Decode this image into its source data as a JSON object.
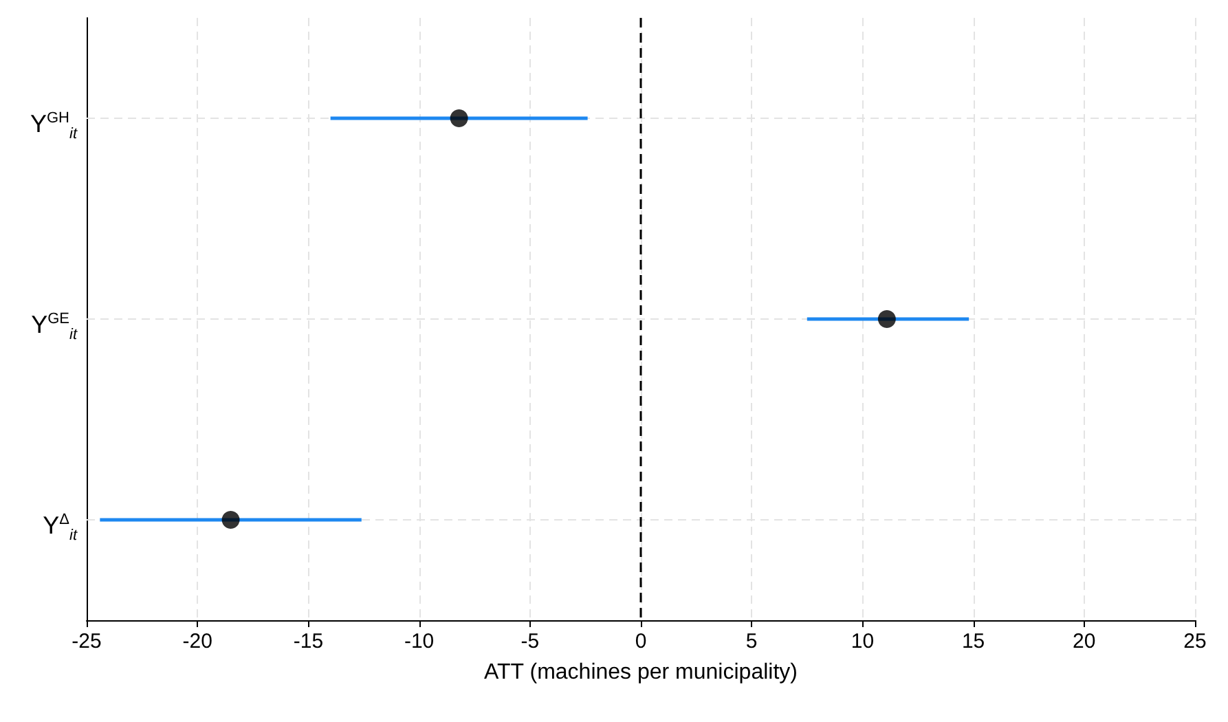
{
  "chart_data": {
    "type": "scatter",
    "orientation": "horizontal",
    "xlabel": "ATT (machines per municipality)",
    "categories": [
      "Y$^{GH}$$_{it}$",
      "Y$^{GE}$$_{it}$",
      "Y$^{Δ}$$_{it}$"
    ],
    "series": [
      {
        "color": "#000000",
        "values": [
          -8.2,
          11.1,
          -18.5
        ],
        "errors": [
          [
            -14.0,
            -2.4
          ],
          [
            7.5,
            14.8
          ],
          [
            -24.4,
            -12.6
          ]
        ]
      }
    ],
    "xlim": [
      -25,
      25
    ],
    "xticks": [
      -25,
      -20,
      -15,
      -10,
      -5,
      0,
      5,
      10,
      15,
      20,
      25
    ],
    "grid": true,
    "marker": "circle",
    "ref_lines": [
      {
        "axis": "x",
        "value": 0,
        "color": "#000000",
        "line_style": "dashed"
      }
    ]
  }
}
